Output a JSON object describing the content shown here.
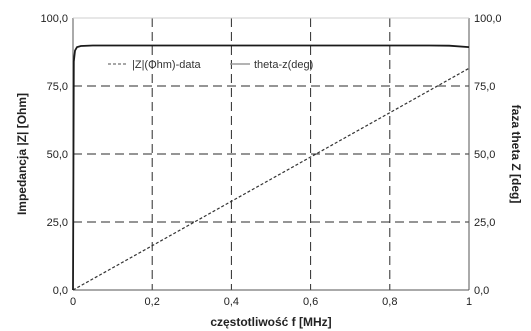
{
  "chart_data": {
    "type": "line",
    "xlabel": "częstotliwość f [MHz]",
    "ylabel_left": "Impedancja |Z| [Ohm]",
    "ylabel_right": "faza theta Z  [deg]",
    "xlim": [
      0,
      1
    ],
    "ylim_left": [
      0,
      100
    ],
    "ylim_right": [
      0,
      100
    ],
    "x_ticks": [
      "0",
      "0,2",
      "0,4",
      "0,6",
      "0,8",
      "1"
    ],
    "y_ticks_left": [
      "0,0",
      "25,0",
      "50,0",
      "75,0",
      "100,0"
    ],
    "y_ticks_right": [
      "0,0",
      "25,0",
      "50,0",
      "75,0",
      "100,0"
    ],
    "grid": true,
    "legend": "top-center",
    "series": [
      {
        "name": "|Z|(Ohm)-data",
        "axis": "left",
        "style": "dashed",
        "color": "#333333",
        "x": [
          0,
          0.2,
          0.4,
          0.6,
          0.8,
          1
        ],
        "y": [
          0,
          16.3,
          32.6,
          48.9,
          65.2,
          81.5
        ]
      },
      {
        "name": "theta-z(deg)",
        "axis": "right",
        "style": "solid",
        "color": "#1a1a1a",
        "x": [
          0,
          0.002,
          0.005,
          0.01,
          0.02,
          0.05,
          0.1,
          0.3,
          0.5,
          0.7,
          0.9,
          0.95,
          1
        ],
        "y": [
          0,
          84,
          88,
          89.3,
          89.7,
          89.9,
          89.9,
          89.9,
          89.9,
          89.9,
          89.9,
          89.8,
          89.3
        ]
      }
    ]
  }
}
